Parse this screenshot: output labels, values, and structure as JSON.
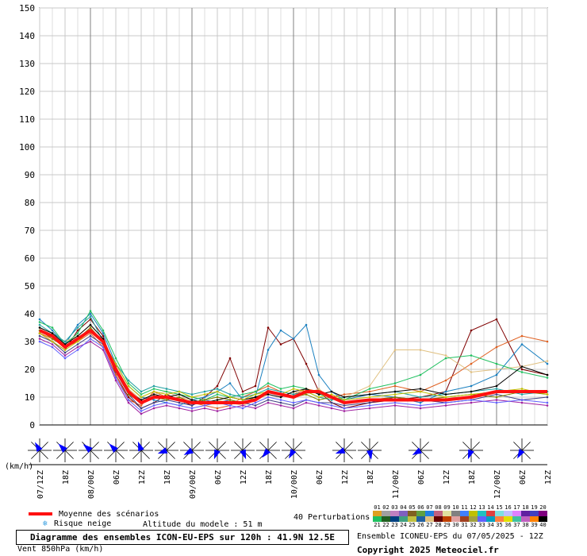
{
  "chart_data": {
    "type": "line",
    "ylabel": "(km/h)",
    "ylim": [
      0,
      150
    ],
    "yticks": [
      0,
      10,
      20,
      30,
      40,
      50,
      60,
      70,
      80,
      90,
      100,
      110,
      120,
      130,
      140,
      150
    ],
    "xlim": [
      0,
      120
    ],
    "xticks": [
      {
        "h": 0,
        "label": "07/12Z"
      },
      {
        "h": 6,
        "label": "18Z"
      },
      {
        "h": 12,
        "label": "08/00Z"
      },
      {
        "h": 18,
        "label": "06Z"
      },
      {
        "h": 24,
        "label": "12Z"
      },
      {
        "h": 30,
        "label": "18Z"
      },
      {
        "h": 36,
        "label": "09/00Z"
      },
      {
        "h": 42,
        "label": "06Z"
      },
      {
        "h": 48,
        "label": "12Z"
      },
      {
        "h": 54,
        "label": "18Z"
      },
      {
        "h": 60,
        "label": "10/00Z"
      },
      {
        "h": 66,
        "label": "06Z"
      },
      {
        "h": 72,
        "label": "12Z"
      },
      {
        "h": 78,
        "label": "18Z"
      },
      {
        "h": 84,
        "label": "11/00Z"
      },
      {
        "h": 90,
        "label": "06Z"
      },
      {
        "h": 96,
        "label": "12Z"
      },
      {
        "h": 102,
        "label": "18Z"
      },
      {
        "h": 108,
        "label": "12/00Z"
      },
      {
        "h": 114,
        "label": "06Z"
      },
      {
        "h": 120,
        "label": "12Z"
      }
    ],
    "x_hours": [
      0,
      3,
      6,
      9,
      12,
      15,
      18,
      21,
      24,
      27,
      30,
      33,
      36,
      39,
      42,
      45,
      48,
      51,
      54,
      57,
      60,
      63,
      66,
      69,
      72,
      78,
      84,
      90,
      96,
      102,
      108,
      114,
      120
    ],
    "mean": {
      "name": "Moyenne des scénarios",
      "color": "#ff1010",
      "values": [
        34,
        32,
        28,
        31,
        34,
        30,
        20,
        12,
        8,
        10,
        10,
        9,
        8,
        8,
        8,
        8,
        8,
        9,
        12,
        11,
        10,
        12,
        12,
        10,
        8,
        9,
        9,
        9,
        9,
        10,
        12,
        12,
        12
      ]
    },
    "series": [
      {
        "color": "#800000",
        "values": [
          33,
          30,
          27,
          34,
          38,
          32,
          18,
          10,
          6,
          8,
          11,
          9,
          7,
          10,
          14,
          24,
          12,
          14,
          35,
          29,
          31,
          22,
          12,
          8,
          6,
          8,
          9,
          10,
          12,
          34,
          38,
          20,
          18
        ]
      },
      {
        "color": "#1a80c0",
        "values": [
          38,
          34,
          29,
          36,
          40,
          33,
          22,
          14,
          10,
          9,
          8,
          7,
          9,
          10,
          12,
          15,
          9,
          10,
          27,
          34,
          31,
          36,
          18,
          12,
          9,
          11,
          10,
          8,
          12,
          14,
          18,
          29,
          22
        ]
      },
      {
        "color": "#e06020",
        "values": [
          33,
          31,
          28,
          30,
          33,
          28,
          18,
          9,
          7,
          12,
          10,
          9,
          8,
          7,
          6,
          7,
          10,
          12,
          14,
          12,
          11,
          13,
          12,
          10,
          11,
          12,
          14,
          12,
          16,
          22,
          28,
          32,
          30
        ]
      },
      {
        "color": "#e0c080",
        "values": [
          35,
          33,
          30,
          32,
          36,
          31,
          21,
          13,
          9,
          11,
          12,
          10,
          9,
          8,
          9,
          8,
          7,
          9,
          11,
          10,
          12,
          11,
          13,
          9,
          10,
          14,
          27,
          27,
          25,
          19,
          20,
          21,
          23
        ]
      },
      {
        "color": "#20c060",
        "values": [
          37,
          35,
          29,
          33,
          41,
          34,
          24,
          15,
          11,
          13,
          12,
          11,
          10,
          9,
          11,
          10,
          11,
          12,
          15,
          13,
          14,
          13,
          11,
          10,
          9,
          13,
          15,
          18,
          24,
          25,
          22,
          19,
          17
        ]
      },
      {
        "color": "#404080",
        "values": [
          32,
          30,
          26,
          29,
          32,
          29,
          19,
          11,
          6,
          8,
          9,
          8,
          7,
          9,
          8,
          9,
          8,
          7,
          9,
          8,
          7,
          9,
          8,
          8,
          7,
          8,
          10,
          9,
          8,
          9,
          11,
          9,
          10
        ]
      },
      {
        "color": "#a020a0",
        "values": [
          31,
          29,
          25,
          28,
          30,
          27,
          16,
          8,
          4,
          6,
          7,
          6,
          5,
          6,
          5,
          6,
          7,
          6,
          8,
          7,
          6,
          8,
          7,
          6,
          5,
          6,
          7,
          6,
          7,
          8,
          9,
          8,
          7
        ]
      },
      {
        "color": "#20a0a0",
        "values": [
          36,
          33,
          30,
          35,
          39,
          30,
          22,
          16,
          12,
          14,
          13,
          12,
          11,
          12,
          13,
          11,
          10,
          11,
          13,
          12,
          11,
          12,
          10,
          9,
          10,
          11,
          12,
          10,
          11,
          12,
          13,
          11,
          12
        ]
      },
      {
        "color": "#808000",
        "values": [
          34,
          31,
          28,
          31,
          35,
          30,
          21,
          11,
          8,
          10,
          9,
          10,
          8,
          9,
          10,
          9,
          8,
          10,
          12,
          11,
          10,
          11,
          9,
          10,
          8,
          9,
          10,
          9,
          10,
          11,
          10,
          12,
          11
        ]
      },
      {
        "color": "#6060ff",
        "values": [
          30,
          28,
          24,
          27,
          31,
          28,
          17,
          9,
          5,
          7,
          8,
          7,
          6,
          7,
          8,
          7,
          6,
          8,
          10,
          9,
          8,
          9,
          8,
          7,
          6,
          7,
          8,
          7,
          8,
          9,
          8,
          9,
          8
        ]
      },
      {
        "color": "#000000",
        "values": [
          35,
          33,
          29,
          32,
          36,
          31,
          20,
          12,
          9,
          11,
          10,
          11,
          9,
          8,
          9,
          10,
          9,
          10,
          11,
          10,
          12,
          13,
          11,
          12,
          10,
          11,
          12,
          13,
          11,
          12,
          14,
          21,
          18
        ]
      },
      {
        "color": "#c0c000",
        "values": [
          33,
          30,
          27,
          30,
          34,
          30,
          22,
          14,
          10,
          12,
          11,
          12,
          10,
          11,
          12,
          10,
          9,
          11,
          12,
          11,
          13,
          12,
          10,
          11,
          9,
          10,
          11,
          12,
          10,
          11,
          12,
          13,
          11
        ]
      }
    ],
    "wind_roses": [
      0,
      6,
      12,
      18,
      24,
      30,
      36,
      42,
      48,
      54,
      60,
      72,
      78,
      90,
      102,
      114
    ]
  },
  "legend": {
    "mean_label": "Moyenne des scénarios",
    "snow_label": "Risque neige",
    "altitude": "Altitude du modele : 51 m",
    "perturbations_label": "40 Perturbations",
    "pert_numbers_top": [
      "01",
      "02",
      "03",
      "04",
      "05",
      "06",
      "07",
      "08",
      "09",
      "10",
      "11",
      "12",
      "13",
      "14",
      "15",
      "16",
      "17",
      "18",
      "19",
      "20"
    ],
    "pert_numbers_bottom": [
      "21",
      "22",
      "23",
      "24",
      "25",
      "26",
      "27",
      "28",
      "29",
      "30",
      "31",
      "32",
      "33",
      "34",
      "35",
      "36",
      "37",
      "38",
      "39",
      "40"
    ],
    "pert_colors_top": [
      "#e0a020",
      "#a0a0a0",
      "#c080c0",
      "#8060c0",
      "#806020",
      "#60a040",
      "#2080e0",
      "#c06080",
      "#e0e0a0",
      "#808080",
      "#4080ff",
      "#c0c000",
      "#20c0c0",
      "#e04040",
      "#80e0e0",
      "#c0c0ff",
      "#e080ff",
      "#6020a0",
      "#4040c0",
      "#800080"
    ],
    "pert_colors_bottom": [
      "#20c060",
      "#206020",
      "#004080",
      "#40a080",
      "#c0c040",
      "#2060a0",
      "#e0c080",
      "#600000",
      "#c04000",
      "#e0a0a0",
      "#a04020",
      "#a0a040",
      "#6060ff",
      "#00a0c0",
      "#ff8040",
      "#e0e000",
      "#40c0a0",
      "#c060c0",
      "#ff8000",
      "#000000"
    ]
  },
  "footer": {
    "title": "Diagramme des ensembles ICON-EU-EPS sur 120h : 41.9N 12.5E",
    "subtitle": "Vent 850hPa (km/h)",
    "ensemble": "Ensemble ICONEU-EPS du 07/05/2025 - 12Z",
    "copyright": "Copyright 2025 Meteociel.fr"
  }
}
